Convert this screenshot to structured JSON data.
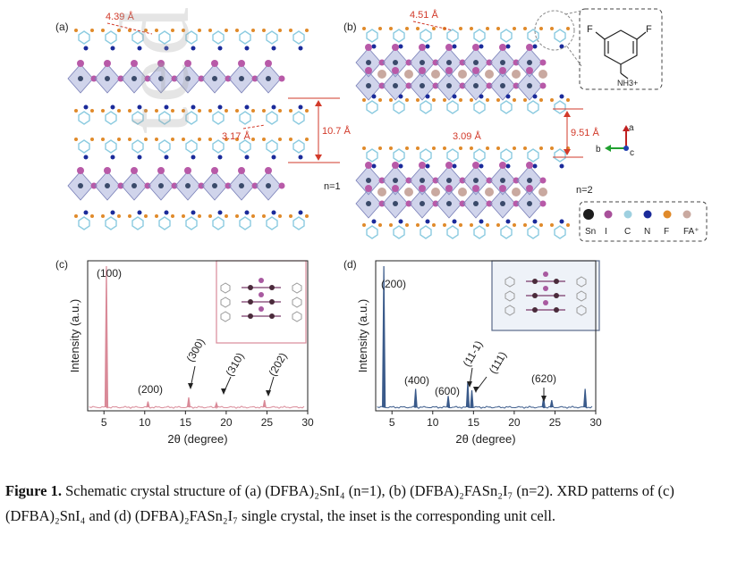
{
  "panels": {
    "a": {
      "label": "(a)",
      "d1": "4.39 Å",
      "d2": "3.17 Å",
      "d3": "10.7 Å",
      "n": "n=1"
    },
    "b": {
      "label": "(b)",
      "d1": "4.51 Å",
      "d2": "3.09 Å",
      "d3": "9.51 Å",
      "n": "n=2",
      "axes": {
        "a": "a",
        "b": "b",
        "c": "c"
      }
    },
    "molecule": {
      "f1": "F",
      "f2": "F",
      "nh3": "NH3+"
    },
    "legend": [
      {
        "label": "Sn",
        "color": "#1c1c1c"
      },
      {
        "label": "I",
        "color": "#a8509a"
      },
      {
        "label": "C",
        "color": "#9ed0e0"
      },
      {
        "label": "N",
        "color": "#1a2a9a"
      },
      {
        "label": "F",
        "color": "#e08a2a"
      },
      {
        "label": "FA⁺",
        "color": "#c9a9a0"
      }
    ],
    "c": {
      "label": "(c)"
    },
    "d": {
      "label": "(d)"
    }
  },
  "chart_data": [
    {
      "type": "line",
      "panel": "(c)",
      "xlabel": "2θ (degree)",
      "ylabel": "Intensity (a.u.)",
      "xlim": [
        3,
        30
      ],
      "xticks": [
        5,
        10,
        15,
        20,
        25,
        30
      ],
      "color": "#d98a98",
      "peaks": [
        {
          "x": 5.3,
          "y": 1.0,
          "label": "(100)"
        },
        {
          "x": 10.4,
          "y": 0.04,
          "label": "(200)"
        },
        {
          "x": 15.4,
          "y": 0.07,
          "label": "(300)"
        },
        {
          "x": 18.8,
          "y": 0.03,
          "label": "(310)"
        },
        {
          "x": 24.7,
          "y": 0.05,
          "label": "(202)"
        }
      ]
    },
    {
      "type": "line",
      "panel": "(d)",
      "xlabel": "2θ (degree)",
      "ylabel": "Intensity (a.u.)",
      "xlim": [
        3,
        30
      ],
      "xticks": [
        5,
        10,
        15,
        20,
        25,
        30
      ],
      "color": "#3a5a8a",
      "peaks": [
        {
          "x": 4.0,
          "y": 1.0,
          "label": "(200)"
        },
        {
          "x": 7.9,
          "y": 0.13,
          "label": "(400)"
        },
        {
          "x": 11.9,
          "y": 0.08,
          "label": "(600)"
        },
        {
          "x": 14.3,
          "y": 0.18,
          "label": "(11-1)"
        },
        {
          "x": 14.8,
          "y": 0.12,
          "label": "(111)"
        },
        {
          "x": 23.6,
          "y": 0.07,
          "label": "(620)"
        },
        {
          "x": 24.6,
          "y": 0.05,
          "label": ""
        },
        {
          "x": 28.7,
          "y": 0.13,
          "label": ""
        }
      ]
    }
  ],
  "watermark": "ted Article",
  "caption": {
    "figure_label": "Figure 1.",
    "text": " Schematic crystal structure of (a) (DFBA)₂SnI₄ (n=1), (b) (DFBA)₂FASn₂I₇ (n=2). XRD patterns of (c) (DFBA)₂SnI₄ and (d) (DFBA)₂FASn₂I₇ single crystal, the inset is the corresponding unit cell."
  }
}
